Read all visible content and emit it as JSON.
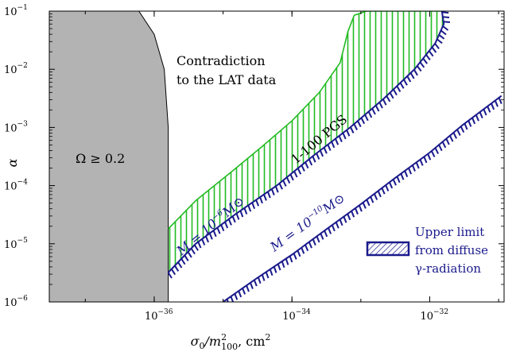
{
  "chart_data": {
    "type": "area",
    "title": "",
    "xlabel_parts": [
      "σ",
      "0",
      "/m",
      "2",
      "100",
      ", cm",
      "2"
    ],
    "ylabel": "α",
    "x_scale": "log",
    "y_scale": "log",
    "xlim": [
      3e-38,
      1.2e-31
    ],
    "ylim": [
      1e-06,
      0.1
    ],
    "x_ticks": [
      {
        "value": 1e-36,
        "base": "10",
        "exp": "−36"
      },
      {
        "value": 1e-34,
        "base": "10",
        "exp": "−34"
      },
      {
        "value": 1e-32,
        "base": "10",
        "exp": "−32"
      }
    ],
    "y_ticks": [
      {
        "value": 1e-06,
        "base": "10",
        "exp": "−6"
      },
      {
        "value": 1e-05,
        "base": "10",
        "exp": "−5"
      },
      {
        "value": 0.0001,
        "base": "10",
        "exp": "−4"
      },
      {
        "value": 0.001,
        "base": "10",
        "exp": "−3"
      },
      {
        "value": 0.01,
        "base": "10",
        "exp": "−2"
      },
      {
        "value": 0.1,
        "base": "10",
        "exp": "−1"
      }
    ],
    "grid": false,
    "regions": [
      {
        "name": "Ω ≥ 0.2",
        "color": "#b3b3b3",
        "boundary": [
          [
            1.6e-36,
            1e-06
          ],
          [
            1.6e-36,
            1e-05
          ],
          [
            1.6e-36,
            0.0001
          ],
          [
            1.6e-36,
            0.001
          ],
          [
            1.4e-36,
            0.01
          ],
          [
            1e-36,
            0.04
          ],
          [
            6e-37,
            0.1
          ]
        ]
      },
      {
        "name": "1-100 PGS",
        "color": "#22bb22",
        "lower_edge": [
          [
            1.6e-36,
            3.2e-06
          ],
          [
            4e-36,
            1e-05
          ],
          [
            1.5e-35,
            3.2e-05
          ],
          [
            6e-35,
            0.0001
          ],
          [
            2e-34,
            0.00032
          ],
          [
            7e-34,
            0.001
          ],
          [
            2.2e-33,
            0.0032
          ],
          [
            6e-33,
            0.01
          ],
          [
            1.2e-32,
            0.028
          ],
          [
            1.6e-32,
            0.06
          ],
          [
            1.5e-32,
            0.1
          ]
        ],
        "upper_edge": [
          [
            1.6e-36,
            1.8e-05
          ],
          [
            4e-36,
            5.5e-05
          ],
          [
            1.3e-35,
            0.00017
          ],
          [
            3.6e-35,
            0.00046
          ],
          [
            1e-34,
            0.0013
          ],
          [
            2.5e-34,
            0.004
          ],
          [
            5e-34,
            0.013
          ],
          [
            6.5e-34,
            0.045
          ],
          [
            8e-34,
            0.085
          ],
          [
            1.2e-33,
            0.1
          ]
        ]
      }
    ],
    "series": [
      {
        "name": "M = 10−6 M⊙",
        "color": "#1a1a8c",
        "x": [
          1.6e-36,
          4e-36,
          1.5e-35,
          6e-35,
          2e-34,
          7e-34,
          2.2e-33,
          6e-33,
          1.2e-32,
          1.6e-32,
          1.5e-32
        ],
        "y": [
          3.2e-06,
          1e-05,
          3.2e-05,
          0.0001,
          0.00032,
          0.001,
          0.0032,
          0.01,
          0.028,
          0.06,
          0.1
        ]
      },
      {
        "name": "M = 10−10 M⊙",
        "color": "#1a1a8c",
        "x": [
          1e-35,
          3e-35,
          1e-34,
          3e-34,
          1e-33,
          3e-33,
          1e-32,
          3e-32,
          1.1e-31
        ],
        "y": [
          1e-06,
          2.5e-06,
          6.5e-06,
          1.7e-05,
          4.8e-05,
          0.00013,
          0.00037,
          0.0011,
          0.0035
        ]
      }
    ],
    "annotations": [
      {
        "id": "contradiction_1",
        "text": "Contradiction"
      },
      {
        "id": "contradiction_2",
        "text": "to the LAT data"
      },
      {
        "id": "omega",
        "text": "Ω ≥ 0.2"
      },
      {
        "id": "pgs",
        "text": "1-100 PGS"
      },
      {
        "id": "m6",
        "pre": "M = 10",
        "exp": "−6",
        "post": "M⊙"
      },
      {
        "id": "m10",
        "pre": "M = 10",
        "exp": "−10",
        "post": "M⊙"
      }
    ],
    "legend": {
      "placement": "bottom-right",
      "entries": [
        "Upper limit",
        "from diffuse",
        "γ-radiation"
      ]
    },
    "colors": {
      "gray_region": "#b3b3b3",
      "green_band": "#22bb22",
      "blue_lines": "#1a1a8c"
    }
  }
}
